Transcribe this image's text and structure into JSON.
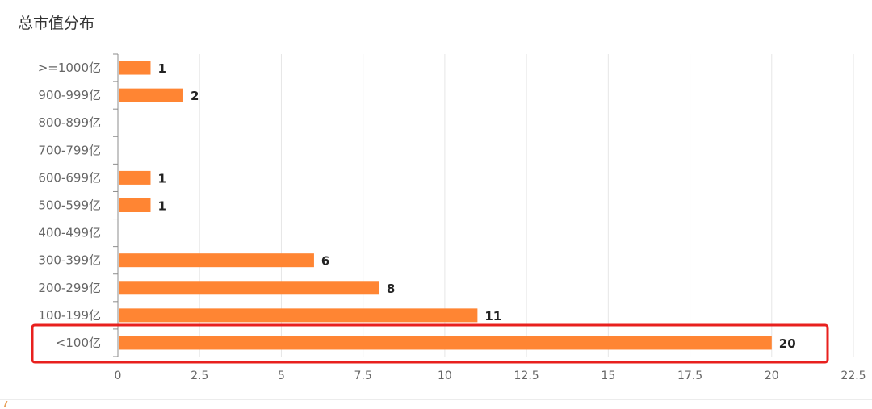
{
  "page": {
    "title": "总市值分布"
  },
  "chart_data": {
    "type": "bar",
    "orientation": "horizontal",
    "title": "总市值分布",
    "categories": [
      ">=1000亿",
      "900-999亿",
      "800-899亿",
      "700-799亿",
      "600-699亿",
      "500-599亿",
      "400-499亿",
      "300-399亿",
      "200-299亿",
      "100-199亿",
      "<100亿"
    ],
    "values": [
      1,
      2,
      null,
      null,
      1,
      1,
      null,
      6,
      8,
      11,
      20
    ],
    "xlim": [
      0,
      22.5
    ],
    "xticks": [
      "0",
      "2.5",
      "5",
      "7.5",
      "10",
      "12.5",
      "15",
      "17.5",
      "20",
      "22.5"
    ],
    "grid": true,
    "bar_color": "#ff8533",
    "highlight": {
      "category": "<100亿",
      "color": "#e8201e"
    }
  }
}
